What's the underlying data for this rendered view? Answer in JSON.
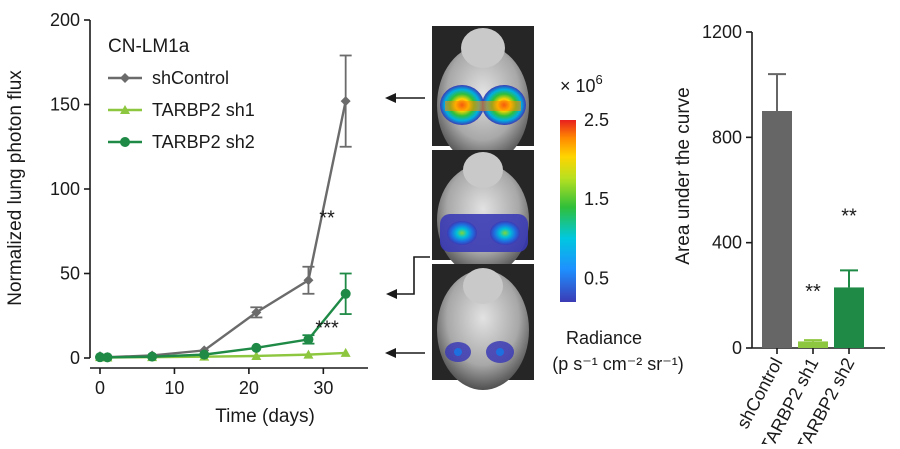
{
  "chart_data": [
    {
      "type": "line",
      "title": "CN-LM1a",
      "xlabel": "Time (days)",
      "ylabel": "Normalized lung photon flux",
      "xlim": [
        0,
        36
      ],
      "ylim": [
        0,
        200
      ],
      "x_ticks": [
        "0",
        "10",
        "20",
        "30"
      ],
      "y_ticks": [
        "0",
        "50",
        "100",
        "150",
        "200"
      ],
      "legend_position": "top-left",
      "series": [
        {
          "name": "shControl",
          "color": "#6b6b6b",
          "marker": "diamond",
          "x": [
            0,
            1,
            7,
            14,
            21,
            28,
            33
          ],
          "y": [
            1,
            0.5,
            1.5,
            4.5,
            27,
            46,
            152
          ],
          "err": [
            0,
            0,
            0,
            0,
            3,
            8,
            27
          ]
        },
        {
          "name": "TARBP2 sh1",
          "color": "#8dc63f",
          "marker": "triangle",
          "x": [
            0,
            1,
            7,
            14,
            21,
            28,
            33
          ],
          "y": [
            0.5,
            0.3,
            0.5,
            0.8,
            1.2,
            2,
            3
          ],
          "err": [
            0,
            0,
            0,
            0,
            0,
            0,
            0
          ]
        },
        {
          "name": "TARBP2 sh2",
          "color": "#1e8a46",
          "marker": "circle",
          "x": [
            0,
            1,
            7,
            14,
            21,
            28,
            33
          ],
          "y": [
            0.5,
            0.4,
            0.8,
            2,
            6,
            11,
            38
          ],
          "err": [
            0,
            0,
            0,
            0,
            0,
            2.5,
            12
          ]
        }
      ],
      "annotations": [
        {
          "text": "**",
          "x": 30.5,
          "y": 79
        },
        {
          "text": "***",
          "x": 30.5,
          "y": 14
        }
      ]
    },
    {
      "type": "bar",
      "ylabel": "Area under the curve",
      "ylim": [
        0,
        1200
      ],
      "y_ticks": [
        "0",
        "400",
        "800",
        "1200"
      ],
      "categories": [
        "shControl",
        "TARBP2 sh1",
        "TARBP2 sh2"
      ],
      "values": [
        900,
        25,
        230
      ],
      "err": [
        140,
        5,
        65
      ],
      "colors": [
        "#666666",
        "#8dc63f",
        "#1e8a46"
      ],
      "significance": [
        "",
        "**",
        "**"
      ]
    }
  ],
  "colorbar": {
    "multiplier_base": "× 10",
    "multiplier_exp": "6",
    "ticks": [
      {
        "value": 2.5,
        "label": "2.5"
      },
      {
        "value": 1.5,
        "label": "1.5"
      },
      {
        "value": 0.5,
        "label": "0.5"
      }
    ],
    "range": [
      0.2,
      2.5
    ],
    "title_line1": "Radiance",
    "title_line2": "(p s⁻¹ cm⁻² sr⁻¹)"
  },
  "images": [
    {
      "name": "mouse-image-shcontrol",
      "level": 1.0
    },
    {
      "name": "mouse-image-tarbp2-sh2",
      "level": 0.45
    },
    {
      "name": "mouse-image-tarbp2-sh1",
      "level": 0.15
    }
  ]
}
